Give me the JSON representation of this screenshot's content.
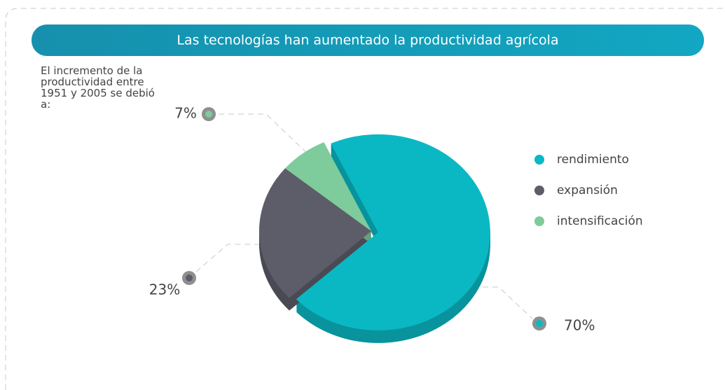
{
  "chart_data": {
    "type": "pie",
    "title": "Las tecnologías han aumentado la productividad agrícola",
    "subtitle": "El incremento de la productividad entre 1951 y 2005 se debió a:",
    "categories": [
      "rendimiento",
      "expansión",
      "intensificación"
    ],
    "values": [
      70,
      23,
      7
    ],
    "value_labels": [
      "70%",
      "23%",
      "7%"
    ],
    "colors": [
      "#0ab8c4",
      "#5d5d69",
      "#7ecb9b"
    ],
    "legend": "right"
  }
}
